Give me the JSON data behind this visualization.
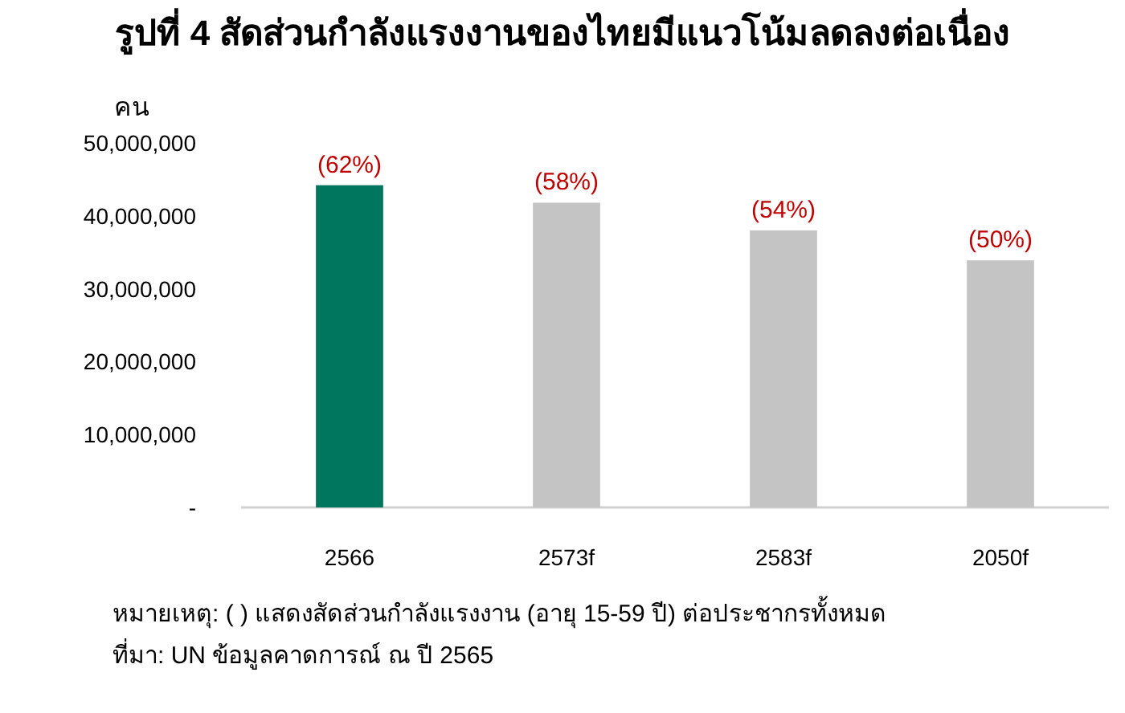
{
  "chart_data": {
    "type": "bar",
    "title": "รูปที่ 4 สัดส่วนกำลังแรงงานของไทยมีแนวโน้มลดลงต่อเนื่อง",
    "ylabel": "คน",
    "categories": [
      "2566",
      "2573f",
      "2583f",
      "2050f"
    ],
    "values": [
      44200000,
      41800000,
      38000000,
      33900000
    ],
    "colors": [
      "#00765f",
      "#c4c4c4",
      "#c4c4c4",
      "#c4c4c4"
    ],
    "ylim": [
      0,
      50000000
    ],
    "yticks": [
      {
        "value": 0,
        "label": "-"
      },
      {
        "value": 10000000,
        "label": "10,000,000"
      },
      {
        "value": 20000000,
        "label": "20,000,000"
      },
      {
        "value": 30000000,
        "label": "30,000,000"
      },
      {
        "value": 40000000,
        "label": "40,000,000"
      },
      {
        "value": 50000000,
        "label": "50,000,000"
      }
    ],
    "annotations": [
      {
        "text": "(62%)",
        "x": "2566",
        "y": 44200000
      },
      {
        "text": "(58%)",
        "x": "2573f",
        "y": 41800000
      },
      {
        "text": "(54%)",
        "x": "2583f",
        "y": 38000000
      },
      {
        "text": "(50%)",
        "x": "2050f",
        "y": 33900000
      },
      "หมายเหตุ: ( ) แสดงสัดส่วนกำลังแรงงาน (อายุ 15-59 ปี) ต่อประชากรทั้งหมด",
      "ที่มา: UN ข้อมูลคาดการณ์ ณ ปี 2565"
    ]
  }
}
